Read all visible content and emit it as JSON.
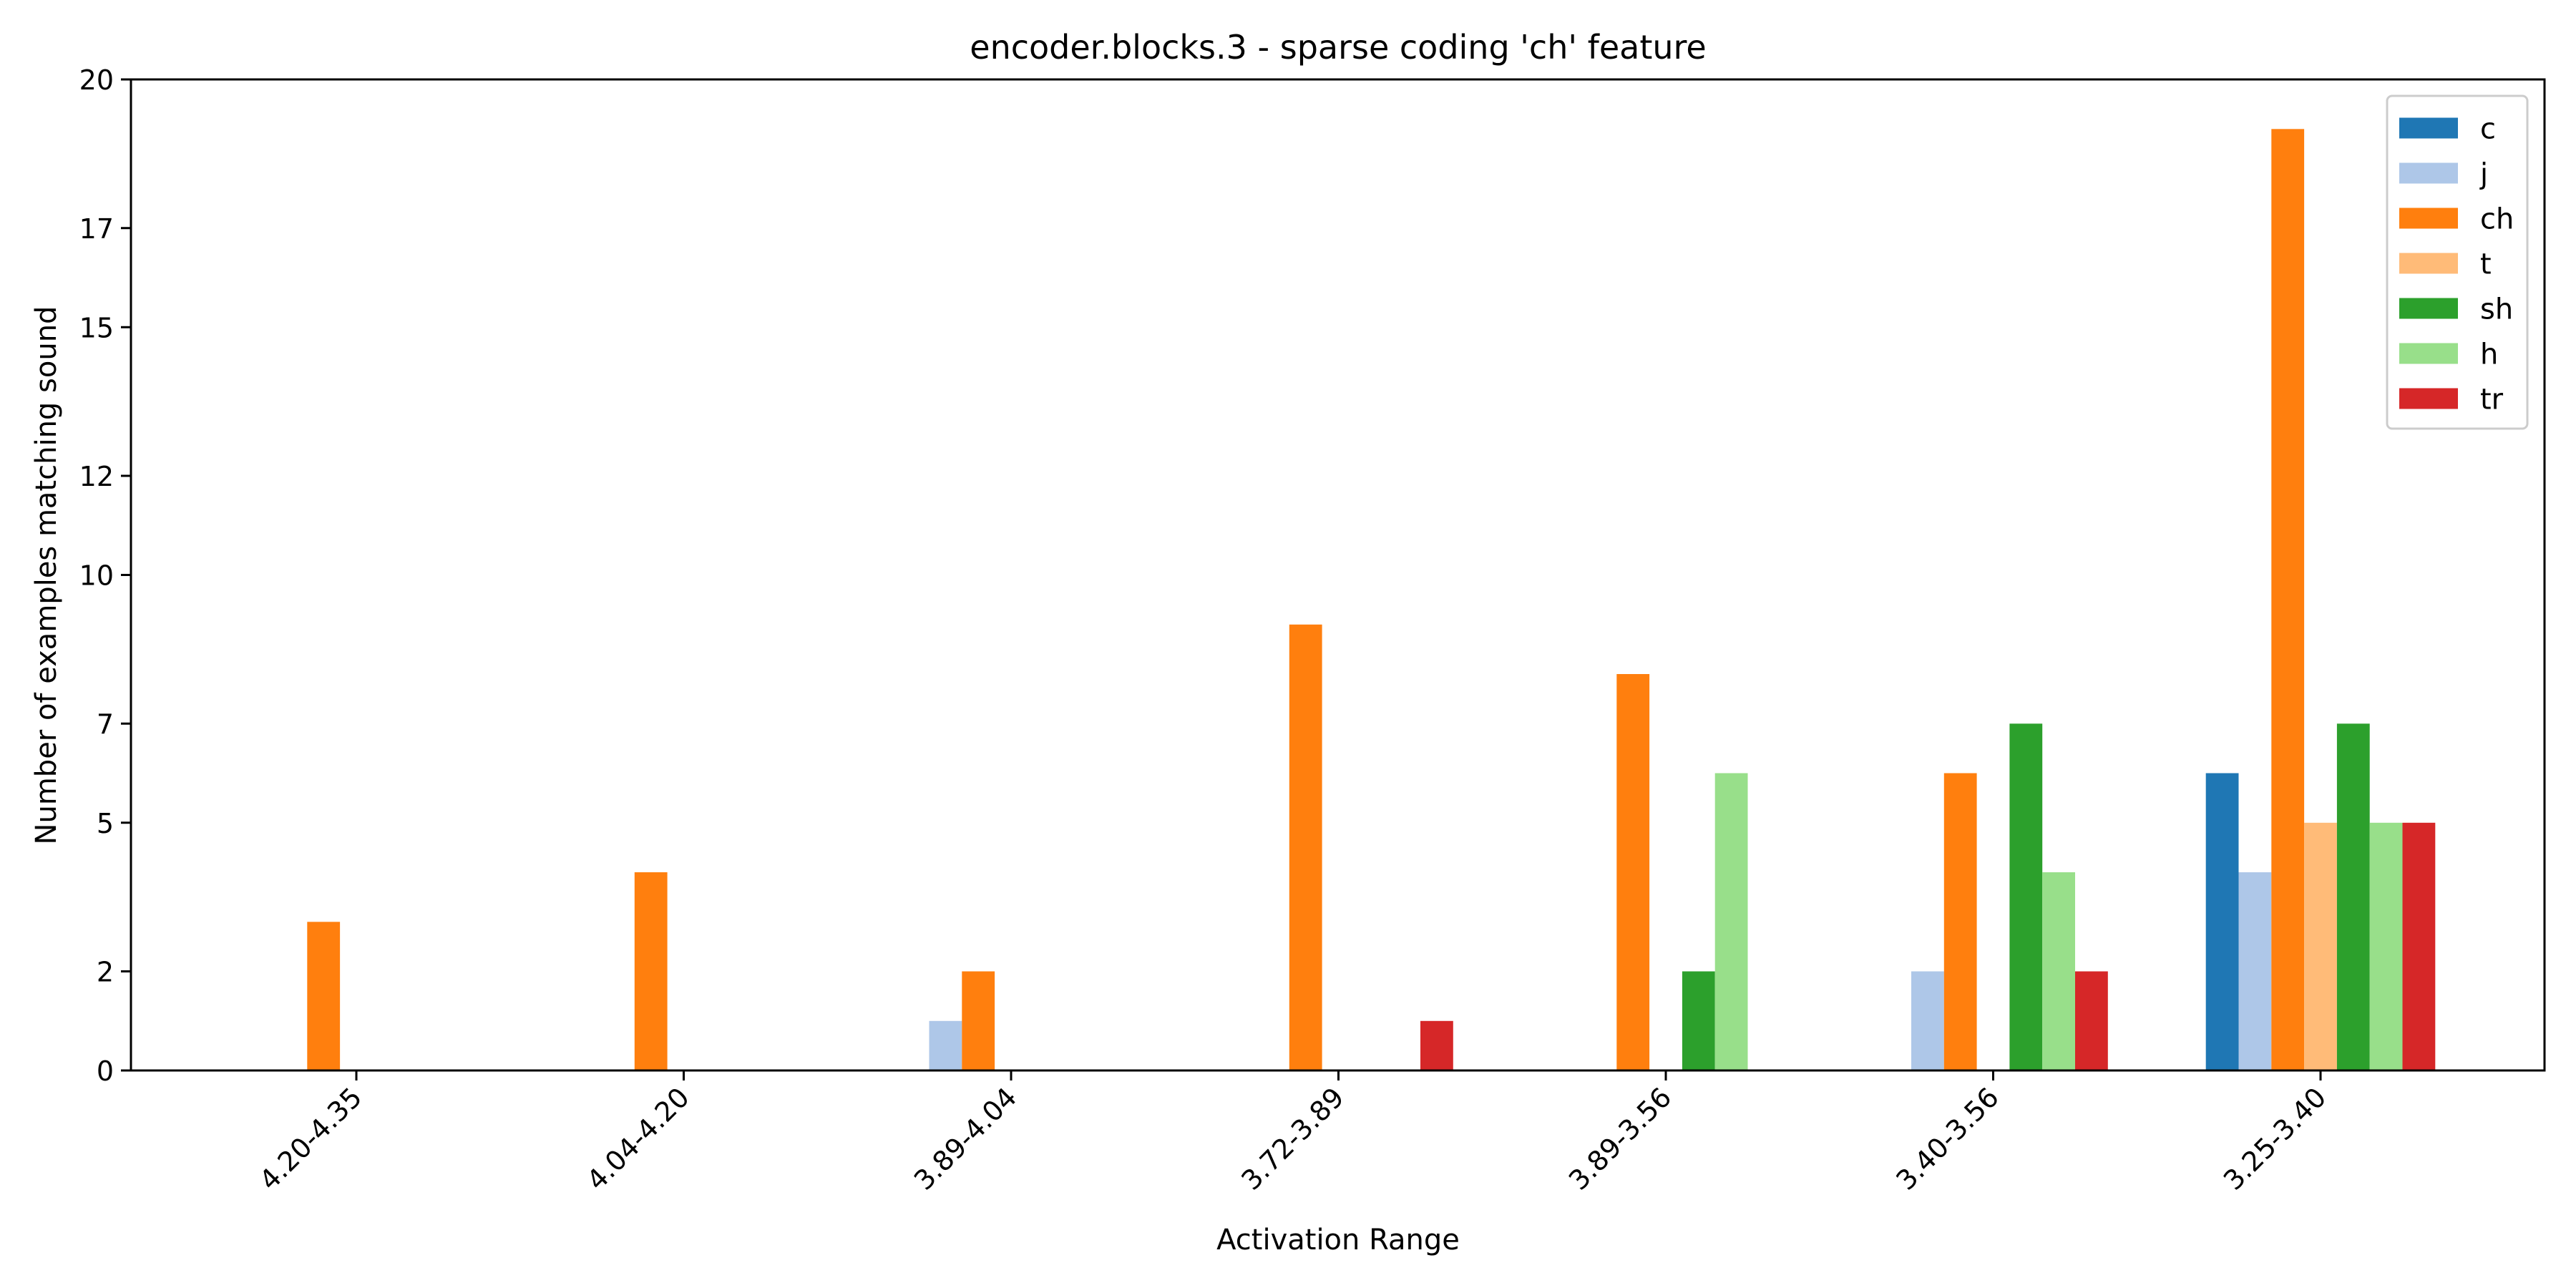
{
  "chart_data": {
    "type": "bar",
    "title": "encoder.blocks.3 - sparse coding 'ch' feature",
    "xlabel": "Activation Range",
    "ylabel": "Number of examples matching sound",
    "categories": [
      "4.20-4.35",
      "4.04-4.20",
      "3.89-4.04",
      "3.72-3.89",
      "3.89-3.56",
      "3.40-3.56",
      "3.25-3.40"
    ],
    "ylim": [
      0,
      20
    ],
    "yticks": [
      0,
      2,
      5,
      7,
      10,
      12,
      15,
      17,
      20
    ],
    "legend_position": "top-right",
    "grid": false,
    "series": [
      {
        "name": "c",
        "color": "#1f77b4",
        "values": [
          0,
          0,
          0,
          0,
          0,
          0,
          6
        ]
      },
      {
        "name": "j",
        "color": "#aec7e8",
        "values": [
          0,
          0,
          1,
          0,
          0,
          2,
          4
        ]
      },
      {
        "name": "ch",
        "color": "#ff7f0e",
        "values": [
          3,
          4,
          2,
          9,
          8,
          6,
          19
        ]
      },
      {
        "name": "t",
        "color": "#ffbb78",
        "values": [
          0,
          0,
          0,
          0,
          0,
          0,
          5
        ]
      },
      {
        "name": "sh",
        "color": "#2ca02c",
        "values": [
          0,
          0,
          0,
          0,
          2,
          7,
          7
        ]
      },
      {
        "name": "h",
        "color": "#98df8a",
        "values": [
          0,
          0,
          0,
          0,
          6,
          4,
          5
        ]
      },
      {
        "name": "tr",
        "color": "#d62728",
        "values": [
          0,
          0,
          0,
          1,
          0,
          2,
          5
        ]
      }
    ]
  }
}
